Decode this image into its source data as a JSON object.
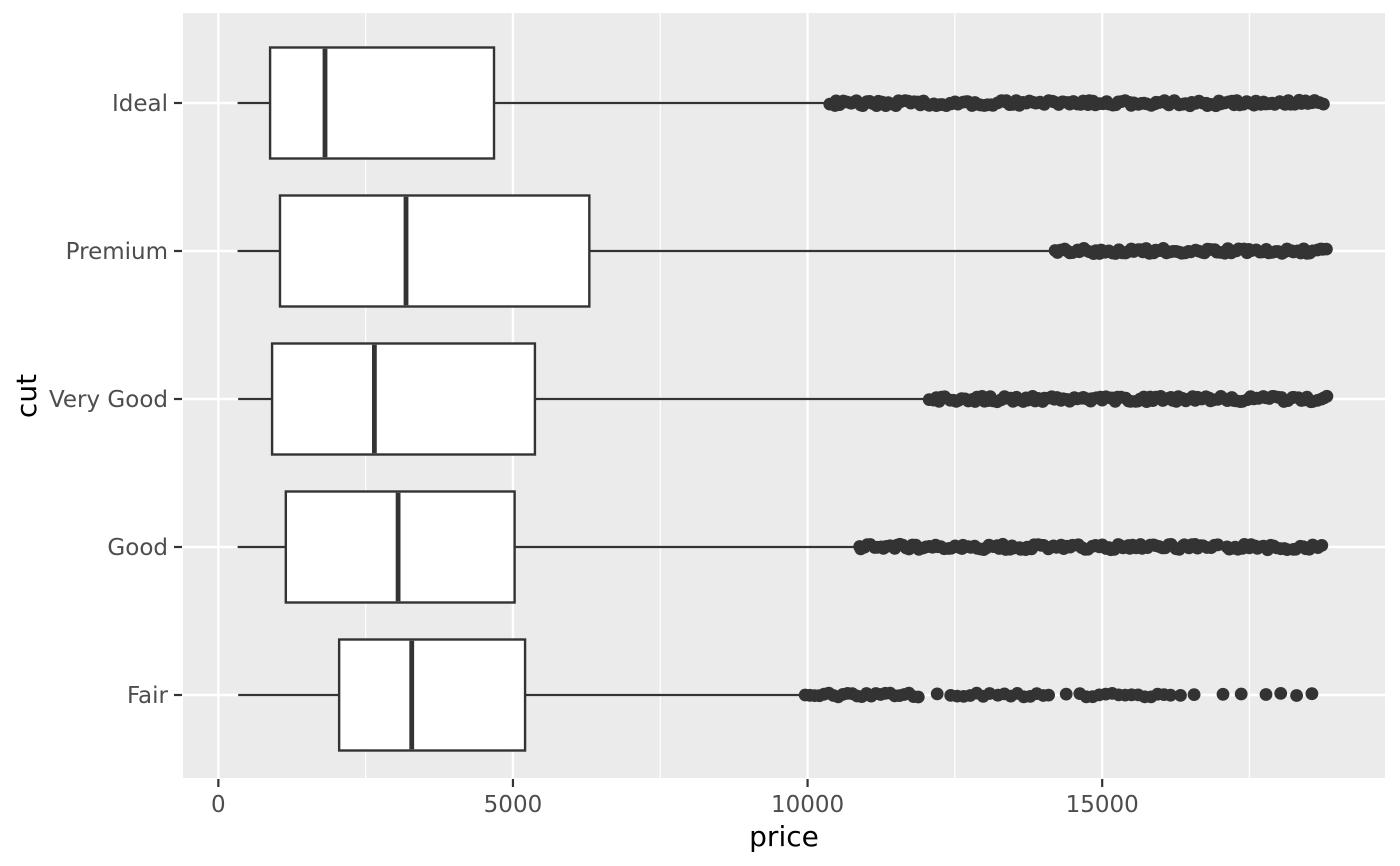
{
  "chart_data": {
    "type": "boxplot",
    "orientation": "horizontal",
    "title": "",
    "xlabel": "price",
    "ylabel": "cut",
    "x_ticks": [
      0,
      5000,
      10000,
      15000
    ],
    "x_tick_labels": [
      "0",
      "5000",
      "10000",
      "15000"
    ],
    "x_minor_ticks": [
      2500,
      7500,
      12500,
      17500
    ],
    "xlim": [
      -600,
      19800
    ],
    "categories_top_to_bottom": [
      "Ideal",
      "Premium",
      "Very Good",
      "Good",
      "Fair"
    ],
    "legend": "none",
    "grid": "white major+minor vertical lines, white major horizontal lines on gray panel",
    "series": [
      {
        "cut": "Ideal",
        "min": 326,
        "q1": 878,
        "median": 1810,
        "q3": 4678.5,
        "whisker_high": 10372,
        "outlier_segments": [
          [
            10395,
            18800
          ]
        ],
        "outlier_points": []
      },
      {
        "cut": "Premium",
        "min": 326,
        "q1": 1046,
        "median": 3185,
        "q3": 6296,
        "whisker_high": 14160,
        "outlier_segments": [
          [
            14185,
            18820
          ]
        ],
        "outlier_points": []
      },
      {
        "cut": "Very Good",
        "min": 336,
        "q1": 912,
        "median": 2648,
        "q3": 5372.75,
        "whisker_high": 12050,
        "outlier_segments": [
          [
            12075,
            18810
          ]
        ],
        "outlier_points": []
      },
      {
        "cut": "Good",
        "min": 327,
        "q1": 1145,
        "median": 3050.5,
        "q3": 5028,
        "whisker_high": 10845,
        "outlier_segments": [
          [
            10865,
            16950
          ],
          [
            17100,
            18170
          ],
          [
            18240,
            18780
          ]
        ],
        "outlier_points": []
      },
      {
        "cut": "Fair",
        "min": 337,
        "q1": 2050,
        "median": 3282,
        "q3": 5205.5,
        "whisker_high": 9920,
        "outlier_segments": [],
        "outlier_points": [
          9960,
          10040,
          10120,
          10200,
          10280,
          10360,
          10440,
          10520,
          10600,
          10680,
          10760,
          10840,
          10920,
          11000,
          11080,
          11160,
          11240,
          11320,
          11400,
          11480,
          11560,
          11640,
          11720,
          11800,
          11880,
          12200,
          12430,
          12540,
          12650,
          12760,
          12870,
          12980,
          13090,
          13230,
          13340,
          13450,
          13560,
          13670,
          13780,
          13890,
          14000,
          14090,
          14390,
          14620,
          14730,
          14840,
          14950,
          15060,
          15170,
          15280,
          15390,
          15500,
          15610,
          15720,
          15830,
          15940,
          16050,
          16160,
          16330,
          16560,
          17050,
          17360,
          17780,
          18030,
          18300,
          18560
        ]
      }
    ],
    "colors": {
      "panel_bg": "#EBEBEB",
      "grid": "#FFFFFF",
      "box_stroke": "#333333",
      "box_fill": "#FFFFFF",
      "median": "#333333",
      "whisker": "#333333",
      "outlier": "#333333",
      "tick_mark": "#333333",
      "tick_label": "#4D4D4D",
      "axis_title": "#000000"
    }
  }
}
